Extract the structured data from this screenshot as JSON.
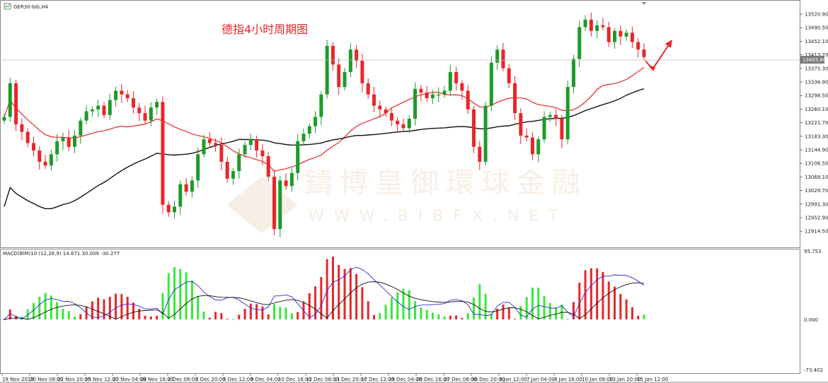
{
  "window": {
    "symbol_title": "GER30-bib,H4"
  },
  "annotation": {
    "text": "德指4小时周期图"
  },
  "watermark": {
    "cn": "鑄博皇御環球金融",
    "en": "WWW.BIBFX.NET"
  },
  "indicator": {
    "label": "MACD(BlM)10 (12,26,9) 14.871 30.009 -30.277",
    "top_value": "95.753",
    "zero_value": "0.000",
    "bottom_value": "-73.402"
  },
  "price_axis": {
    "ticks": [
      "13520.90",
      "13490.50",
      "13452.10",
      "13413.70",
      "13375.30",
      "13336.90",
      "13298.50",
      "13260.10",
      "13221.70",
      "13183.30",
      "13144.90",
      "13106.50",
      "13068.10",
      "13029.70",
      "12991.30",
      "12952.90",
      "12914.50"
    ],
    "current_price": "13403.80"
  },
  "time_axis": {
    "ticks": [
      "18 Nov 2019",
      "20 Nov 08:00",
      "21 Nov 20:00",
      "25 Nov 12:00",
      "27 Nov 04:00",
      "28 Nov 16:00",
      "2 Dec 08:00",
      "3 Dec 20:00",
      "5 Dec 12:00",
      "9 Dec 04:00",
      "10 Dec 16:00",
      "12 Dec 08:00",
      "13 Dec 20:00",
      "17 Dec 12:00",
      "19 Dec 04:00",
      "20 Dec 16:00",
      "27 Dec 08:00",
      "30 Dec 20:00",
      "3 Jan 12:00",
      "7 Jan 04:00",
      "8 Jan 16:00",
      "10 Jan 08:00",
      "13 Jan 20:00",
      "15 Jan 12:00"
    ]
  },
  "colors": {
    "bull": "#1e9a2a",
    "bear": "#e8262a",
    "ma_fast": "#e8262a",
    "ma_slow": "#111111",
    "hist_pos": "#e8262a",
    "hist_neg": "#39e83a",
    "macd_line": "#2b2bd6",
    "signal_line": "#111111"
  },
  "chart_data": {
    "type": "candlestick",
    "symbol": "GER30-bib,H4",
    "ylim": [
      12895,
      13545
    ],
    "series_close": [
      13240,
      13330,
      13220,
      13200,
      13170,
      13150,
      13120,
      13110,
      13140,
      13175,
      13185,
      13160,
      13190,
      13230,
      13255,
      13260,
      13270,
      13245,
      13285,
      13310,
      13300,
      13290,
      13265,
      13250,
      13230,
      13265,
      13280,
      13005,
      12985,
      13000,
      13060,
      13040,
      13070,
      13140,
      13180,
      13170,
      13165,
      13120,
      13075,
      13095,
      13140,
      13165,
      13180,
      13150,
      13135,
      13080,
      12940,
      13070,
      13055,
      13090,
      13175,
      13195,
      13215,
      13240,
      13300,
      13430,
      13380,
      13320,
      13360,
      13420,
      13390,
      13330,
      13300,
      13270,
      13260,
      13250,
      13230,
      13220,
      13210,
      13235,
      13315,
      13305,
      13290,
      13300,
      13300,
      13310,
      13360,
      13330,
      13310,
      13260,
      13160,
      13120,
      13270,
      13385,
      13420,
      13370,
      13330,
      13250,
      13190,
      13185,
      13140,
      13180,
      13240,
      13245,
      13235,
      13180,
      13320,
      13395,
      13480,
      13500,
      13470,
      13485,
      13480,
      13440,
      13470,
      13455,
      13465,
      13440,
      13420,
      13400
    ]
  }
}
